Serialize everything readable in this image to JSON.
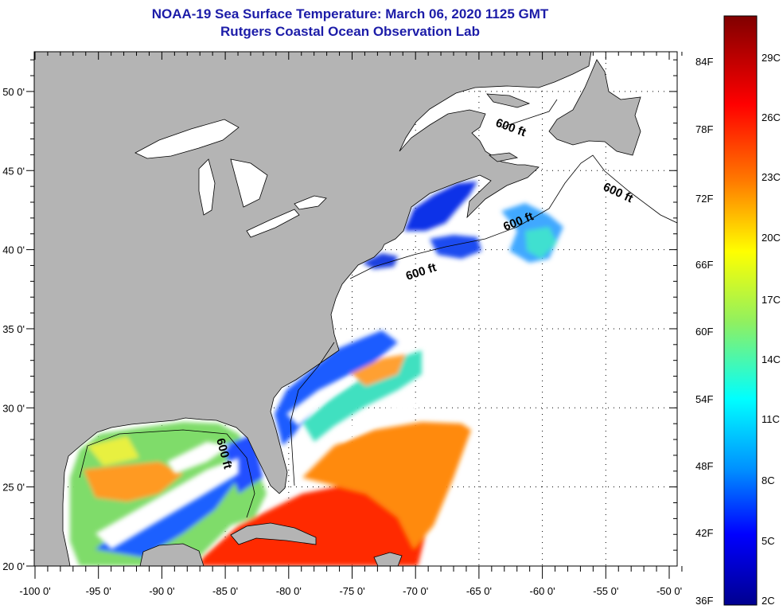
{
  "title": {
    "line1": "NOAA-19 Sea Surface Temperature:  March 06, 2020 1125 GMT",
    "line2": "Rutgers Coastal Ocean Observation Lab"
  },
  "map": {
    "lon_labels": [
      "-100 0'",
      "-95 0'",
      "-90 0'",
      "-85 0'",
      "-80 0'",
      "-75 0'",
      "-70 0'",
      "-65 0'",
      "-60 0'",
      "-55 0'",
      "-50 0'"
    ],
    "lat_labels": [
      "20 0'",
      "25 0'",
      "30 0'",
      "35 0'",
      "40 0'",
      "45 0'",
      "50 0'"
    ],
    "contour_labels": [
      "600 ft",
      "600 ft",
      "600 ft",
      "600 ft",
      "600 ft"
    ],
    "colors": {
      "land": "#b4b4b4",
      "ocean_no_data": "#ffffff",
      "title": "#1c1ca8"
    }
  },
  "colorbar": {
    "fahrenheit": [
      "84F",
      "78F",
      "72F",
      "66F",
      "60F",
      "54F",
      "48F",
      "42F",
      "36F"
    ],
    "celsius": [
      "29C",
      "26C",
      "23C",
      "20C",
      "17C",
      "14C",
      "11C",
      "8C",
      "5C",
      "2C"
    ],
    "colors": [
      "#800000",
      "#ff0000",
      "#ff8000",
      "#ffff00",
      "#80ff80",
      "#00ffff",
      "#0080ff",
      "#0000ff",
      "#00008f"
    ]
  }
}
